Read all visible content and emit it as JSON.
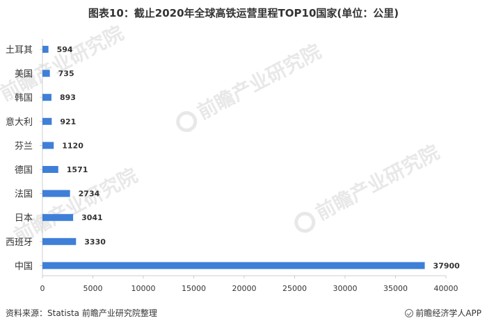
{
  "title": "图表10：截止2020年全球高铁运营里程TOP10国家(单位：公里)",
  "footer": {
    "source": "资料来源：Statista 前瞻产业研究院整理",
    "brand": "前瞻经济学人APP"
  },
  "watermark": {
    "text": "前瞻产业研究院"
  },
  "colors": {
    "bar": "#3f7fd8",
    "axis": "#cccccc",
    "text": "#333333"
  },
  "chart_data": {
    "type": "bar",
    "orientation": "horizontal",
    "categories": [
      "土耳其",
      "美国",
      "韩国",
      "意大利",
      "芬兰",
      "德国",
      "法国",
      "日本",
      "西班牙",
      "中国"
    ],
    "values": [
      594,
      735,
      893,
      921,
      1120,
      1571,
      2734,
      3041,
      3330,
      37900
    ],
    "xlim": [
      0,
      40000
    ],
    "xticks": [
      0,
      5000,
      10000,
      15000,
      20000,
      25000,
      30000,
      35000,
      40000
    ],
    "title": "图表10：截止2020年全球高铁运营里程TOP10国家(单位：公里)",
    "xlabel": "",
    "ylabel": "",
    "grid": false,
    "legend": "none"
  }
}
